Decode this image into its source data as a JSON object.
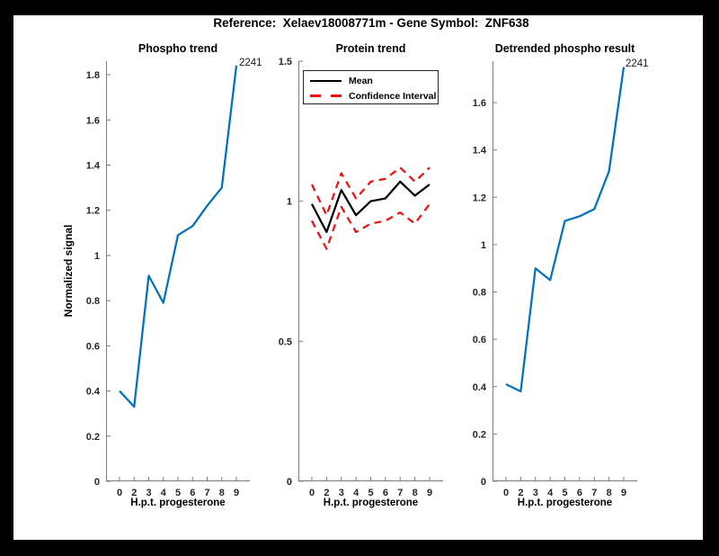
{
  "figure": {
    "title": "Reference:  Xelaev18008771m - Gene Symbol:  ZNF638",
    "background_color": "#000000",
    "canvas_color": "#ffffff",
    "axis_color": "#7a7a7a",
    "tick_label_color": "#262626"
  },
  "chart_data": [
    {
      "type": "line",
      "title": "Phospho trend",
      "xlabel": "H.p.t. progesterone",
      "ylabel": "Normalized signal",
      "x_tick_labels": [
        "0",
        "2",
        "3",
        "4",
        "5",
        "6",
        "7",
        "8",
        "9"
      ],
      "yticks": [
        0,
        0.2,
        0.4,
        0.6,
        0.8,
        1,
        1.2,
        1.4,
        1.6,
        1.8
      ],
      "ylim": [
        0,
        1.86
      ],
      "grid": false,
      "annotation": "2241",
      "series": [
        {
          "name": "phospho-signal",
          "color": "#0072bd",
          "style": "solid",
          "values": [
            0.4,
            0.33,
            0.91,
            0.79,
            1.09,
            1.13,
            1.22,
            1.3,
            1.84
          ]
        }
      ]
    },
    {
      "type": "line",
      "title": "Protein trend",
      "xlabel": "H.p.t. progesterone",
      "ylabel": "",
      "x_tick_labels": [
        "0",
        "2",
        "3",
        "4",
        "5",
        "6",
        "7",
        "8",
        "9"
      ],
      "yticks": [
        0,
        0.5,
        1,
        1.5
      ],
      "ylim": [
        0,
        1.5
      ],
      "grid": false,
      "legend": {
        "position": "northwest",
        "entries": [
          {
            "label": "Mean",
            "color": "#000000",
            "style": "solid"
          },
          {
            "label": "Confidence Interval",
            "color": "#ee1111",
            "style": "dashed"
          }
        ]
      },
      "series": [
        {
          "name": "mean",
          "color": "#000000",
          "style": "solid",
          "values": [
            0.99,
            0.89,
            1.04,
            0.95,
            1.0,
            1.01,
            1.07,
            1.02,
            1.06
          ]
        },
        {
          "name": "ci-upper",
          "color": "#ee1111",
          "style": "dashed",
          "values": [
            1.06,
            0.95,
            1.1,
            1.01,
            1.07,
            1.08,
            1.12,
            1.07,
            1.12
          ]
        },
        {
          "name": "ci-lower",
          "color": "#ee1111",
          "style": "dashed",
          "values": [
            0.93,
            0.83,
            0.98,
            0.89,
            0.92,
            0.93,
            0.96,
            0.92,
            0.99
          ]
        }
      ]
    },
    {
      "type": "line",
      "title": "Detrended phospho result",
      "xlabel": "H.p.t. progesterone",
      "ylabel": "",
      "x_tick_labels": [
        "0",
        "2",
        "3",
        "4",
        "5",
        "6",
        "7",
        "8",
        "9"
      ],
      "yticks": [
        0,
        0.2,
        0.4,
        0.6,
        0.8,
        1,
        1.2,
        1.4,
        1.6
      ],
      "ylim": [
        0,
        1.775
      ],
      "grid": false,
      "annotation": "2241",
      "series": [
        {
          "name": "detrended-phospho",
          "color": "#0072bd",
          "style": "solid",
          "values": [
            0.41,
            0.38,
            0.9,
            0.85,
            1.1,
            1.12,
            1.15,
            1.31,
            1.75
          ]
        }
      ]
    }
  ]
}
